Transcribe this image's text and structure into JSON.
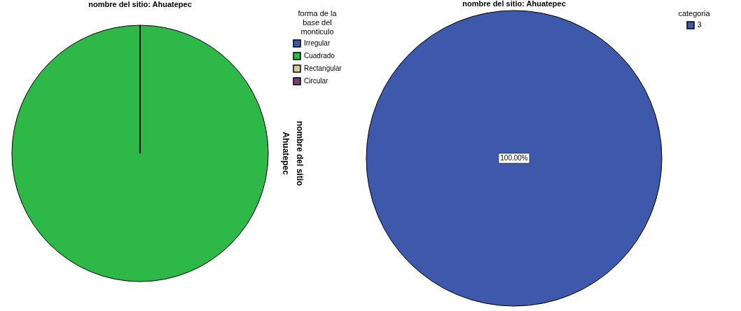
{
  "chart_data": [
    {
      "type": "pie",
      "title": "nombre del sitio: Ahuatepec",
      "legend_title": "forma de la base del monticulo",
      "legend": "top right",
      "categories": [
        "Irregular",
        "Cuadrado",
        "Rectangular",
        "Circular"
      ],
      "values": [
        0,
        100,
        0,
        0
      ],
      "colors": [
        "#3e58ac",
        "#2eb848",
        "#d3ce97",
        "#753d7a"
      ],
      "annotations": [
        "nombre del sitio",
        "Ahuatepec"
      ]
    },
    {
      "type": "pie",
      "title": "nombre del sitio: Ahuatepec",
      "legend_title": "categoria",
      "legend": "top right",
      "categories": [
        "3"
      ],
      "values": [
        100
      ],
      "colors": [
        "#3e58ac"
      ],
      "value_labels": [
        "100.00%"
      ]
    }
  ]
}
